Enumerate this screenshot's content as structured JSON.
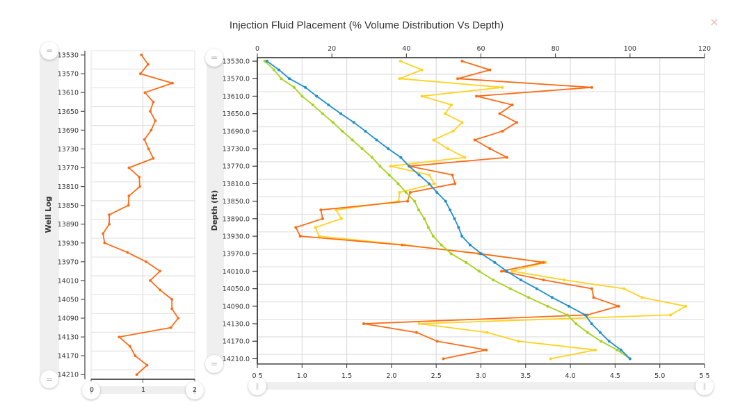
{
  "title": "Injection Fluid Placement (% Volume Distribution Vs Depth)",
  "close_icon": "×",
  "handle_glyphs": {
    "vertical": "=",
    "horizontal": "‖"
  },
  "chart_data": [
    {
      "id": "well-log",
      "type": "line",
      "title": "",
      "xlabel": "",
      "ylabel": "Well Log",
      "ylim": [
        13521,
        14220
      ],
      "y_inverted": true,
      "xlim": [
        0,
        2
      ],
      "grid": true,
      "y_ticks": [
        13530,
        13570,
        13610,
        13650,
        13690,
        13730,
        13770,
        13810,
        13850,
        13890,
        13930,
        13970,
        14010,
        14050,
        14090,
        14130,
        14170,
        14210
      ],
      "y_tick_labels": [
        "13530",
        "13570",
        "13610",
        "13650",
        "13690",
        "13730",
        "13770",
        "13810",
        "13850",
        "13890",
        "13930",
        "13970",
        "14010",
        "14050",
        "14090",
        "14130",
        "14170",
        "14210"
      ],
      "y_grid": [
        13560,
        13600,
        13640,
        13680,
        13720,
        13760,
        13800,
        13840,
        13880,
        13920,
        13960,
        14000,
        14040,
        14080,
        14120,
        14160,
        14200
      ],
      "x_ticks": [
        0,
        1,
        2
      ],
      "x_tick_labels": [
        "0",
        "1",
        "2"
      ],
      "x_grid": [
        1
      ],
      "x_range_slider": {
        "min": 0,
        "max": 2
      },
      "y_range_slider": {
        "min": 13530,
        "max": 14210
      },
      "depths": [
        13530,
        13550,
        13570,
        13590,
        13610,
        13630,
        13650,
        13670,
        13690,
        13710,
        13730,
        13750,
        13770,
        13790,
        13810,
        13830,
        13850,
        13870,
        13890,
        13910,
        13930,
        13950,
        13970,
        13990,
        14010,
        14030,
        14050,
        14070,
        14090,
        14110,
        14130,
        14150,
        14170,
        14190,
        14210
      ],
      "series": [
        {
          "name": "well-log",
          "color": "#ff6a13",
          "values": [
            0.97,
            1.1,
            0.95,
            1.57,
            1.04,
            1.2,
            1.14,
            1.24,
            1.16,
            1.03,
            1.11,
            1.2,
            0.73,
            0.93,
            0.94,
            0.73,
            0.72,
            0.35,
            0.35,
            0.23,
            0.26,
            0.7,
            1.06,
            1.33,
            1.14,
            1.33,
            1.56,
            1.56,
            1.68,
            1.54,
            0.54,
            0.75,
            0.85,
            1.08,
            0.88
          ]
        }
      ]
    },
    {
      "id": "placement",
      "type": "line",
      "title": "Injection Fluid Placement (% Volume Distribution Vs Depth)",
      "xlabel": "",
      "ylabel": "Depth (ft)",
      "ylim": [
        13522,
        14222
      ],
      "y_inverted": true,
      "grid": true,
      "top_axis": {
        "lim": [
          0,
          120
        ],
        "ticks": [
          0,
          20,
          40,
          60,
          80,
          100,
          120
        ],
        "labels": [
          "0",
          "20",
          "40",
          "60",
          "80",
          "100",
          "120"
        ]
      },
      "bottom_axis": {
        "lim": [
          0.5,
          5.5
        ],
        "ticks": [
          0.5,
          1.0,
          1.5,
          2.0,
          2.5,
          3.0,
          3.5,
          4.0,
          4.5,
          5.0,
          5.5
        ],
        "labels": [
          "0.5",
          "1.0",
          "1.5",
          "2.0",
          "2.5",
          "3.0",
          "3.5",
          "4.0",
          "4.5",
          "5.0",
          "5.5"
        ]
      },
      "y_ticks": [
        13530,
        13570,
        13610,
        13650,
        13690,
        13730,
        13770,
        13810,
        13850,
        13890,
        13930,
        13970,
        14010,
        14050,
        14090,
        14130,
        14170,
        14210
      ],
      "y_tick_labels": [
        "13530.0",
        "13570.0",
        "13610.0",
        "13650.0",
        "13690.0",
        "13730.0",
        "13770.0",
        "13810.0",
        "13850.0",
        "13890.0",
        "13930.0",
        "13970.0",
        "14010.0",
        "14050.0",
        "14090.0",
        "14130.0",
        "14170.0",
        "14210.0"
      ],
      "y_grid": [
        13560,
        13600,
        13640,
        13680,
        13720,
        13760,
        13800,
        13840,
        13880,
        13920,
        13960,
        14000,
        14040,
        14080,
        14120,
        14160,
        14200
      ],
      "x_grid_bottom": [
        1.0,
        1.5,
        2.0,
        2.5,
        3.0,
        3.5,
        4.0,
        4.5,
        5.0
      ],
      "x_range_slider": {
        "min": 0.5,
        "max": 5.5
      },
      "y_range_slider": {
        "min": 13530,
        "max": 14210
      },
      "depths": [
        13530,
        13550,
        13570,
        13590,
        13610,
        13630,
        13650,
        13670,
        13690,
        13710,
        13730,
        13750,
        13770,
        13790,
        13810,
        13830,
        13850,
        13870,
        13890,
        13910,
        13930,
        13950,
        13970,
        13990,
        14010,
        14030,
        14050,
        14070,
        14090,
        14110,
        14130,
        14150,
        14170,
        14190,
        14210
      ],
      "series": [
        {
          "name": "yellow",
          "axis": "bottom",
          "color": "#ffd21f",
          "values": [
            2.1,
            2.34,
            2.09,
            3.24,
            2.34,
            2.67,
            2.6,
            2.79,
            2.69,
            2.47,
            2.63,
            2.82,
            1.99,
            2.42,
            2.48,
            2.09,
            2.08,
            1.38,
            1.44,
            1.15,
            1.19,
            2.15,
            2.97,
            3.72,
            3.35,
            3.93,
            4.6,
            4.8,
            5.29,
            5.12,
            2.31,
            3.07,
            3.42,
            4.28,
            3.78
          ]
        },
        {
          "name": "orange",
          "axis": "bottom",
          "color": "#ff6a13",
          "values": [
            2.79,
            3.1,
            2.74,
            4.24,
            2.95,
            3.35,
            3.21,
            3.4,
            3.24,
            2.93,
            3.1,
            3.29,
            2.2,
            2.68,
            2.71,
            2.21,
            2.18,
            1.21,
            1.23,
            0.93,
            0.98,
            2.12,
            2.99,
            3.7,
            3.23,
            3.7,
            4.24,
            4.26,
            4.54,
            4.19,
            1.69,
            2.28,
            2.51,
            3.06,
            2.58
          ]
        },
        {
          "name": "green",
          "axis": "top",
          "color": "#a5d21c",
          "values": [
            2.0,
            4.5,
            6.4,
            9.9,
            12.0,
            14.9,
            17.5,
            20.3,
            22.8,
            25.5,
            28.1,
            30.8,
            32.9,
            35.4,
            37.8,
            39.9,
            42.2,
            43.3,
            44.8,
            45.9,
            47.2,
            49.4,
            52.0,
            56.0,
            59.5,
            63.3,
            67.9,
            72.8,
            77.9,
            83.2,
            85.5,
            88.6,
            92.2,
            96.6,
            100.0
          ]
        },
        {
          "name": "blue",
          "axis": "top",
          "color": "#1f8ecf",
          "values": [
            2.6,
            5.8,
            8.6,
            12.9,
            15.9,
            19.1,
            22.4,
            25.9,
            29.0,
            32.0,
            35.1,
            38.5,
            40.7,
            43.4,
            46.1,
            48.2,
            50.5,
            51.7,
            52.9,
            54.0,
            54.9,
            57.1,
            60.1,
            63.7,
            66.9,
            70.7,
            75.0,
            79.1,
            83.6,
            88.0,
            89.7,
            92.0,
            94.4,
            97.6,
            100.0
          ]
        }
      ]
    }
  ]
}
